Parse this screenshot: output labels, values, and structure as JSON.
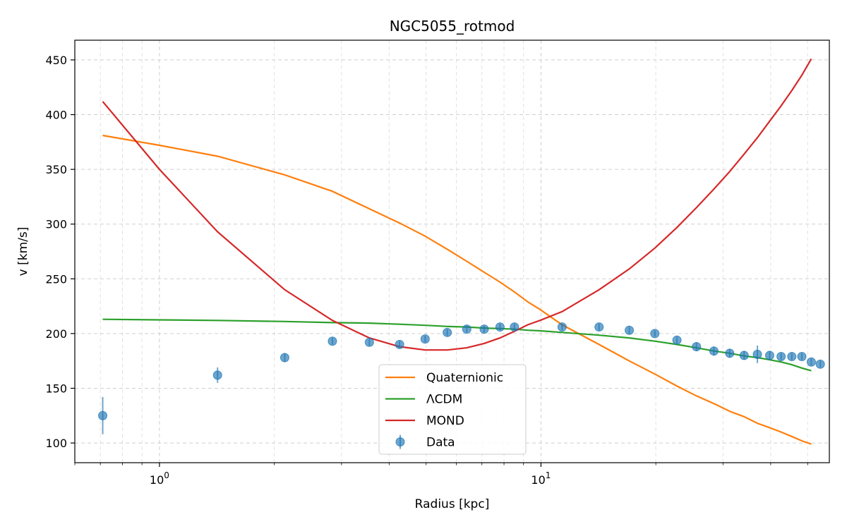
{
  "chart_data": {
    "type": "line",
    "title": "NGC5055_rotmod",
    "xlabel": "Radius [kpc]",
    "ylabel": "v [km/s]",
    "xscale": "log",
    "xlim": [
      0.6,
      57
    ],
    "ylim": [
      82,
      468
    ],
    "yticks": [
      100,
      150,
      200,
      250,
      300,
      350,
      400,
      450
    ],
    "xticks": [
      {
        "value": 1,
        "base": "10",
        "exp": "0"
      },
      {
        "value": 10,
        "base": "10",
        "exp": "1"
      }
    ],
    "grid": true,
    "legend_position": "lower-center",
    "series": [
      {
        "name": "Quaternionic",
        "kind": "line",
        "color": "#ff7f0e",
        "x": [
          0.71,
          1.0,
          1.42,
          2.13,
          2.84,
          3.55,
          4.26,
          4.97,
          5.68,
          6.39,
          7.1,
          7.81,
          8.52,
          9.23,
          9.94,
          11.36,
          14.2,
          17.04,
          19.88,
          22.72,
          25.56,
          28.4,
          31.24,
          34.08,
          36.92,
          39.76,
          42.6,
          45.44,
          48.28,
          51.12
        ],
        "y": [
          381,
          372,
          362,
          345,
          330,
          314,
          301,
          289,
          277,
          266,
          256,
          247,
          238,
          229,
          222,
          208,
          190,
          175,
          163,
          152,
          143,
          136,
          129,
          124,
          118,
          114,
          110,
          106,
          102,
          99
        ]
      },
      {
        "name": "ΛCDM",
        "kind": "line",
        "color": "#2ca02c",
        "x": [
          0.71,
          1.0,
          1.42,
          2.13,
          2.84,
          3.55,
          4.26,
          4.97,
          5.68,
          6.39,
          7.1,
          7.81,
          8.52,
          9.23,
          9.94,
          11.36,
          14.2,
          17.04,
          19.88,
          22.72,
          25.56,
          28.4,
          31.24,
          34.08,
          36.92,
          39.76,
          42.6,
          45.44,
          48.28,
          51.12
        ],
        "y": [
          213,
          212.5,
          212,
          211,
          210,
          209.5,
          208.5,
          207.5,
          206.5,
          206,
          205,
          204.5,
          204,
          203,
          202.5,
          201,
          198.5,
          196,
          193,
          190,
          187,
          184,
          182,
          179.5,
          178,
          176,
          174,
          171.5,
          168.5,
          166
        ]
      },
      {
        "name": "MOND",
        "kind": "line",
        "color": "#d62728",
        "x": [
          0.71,
          1.0,
          1.42,
          2.13,
          2.84,
          3.55,
          4.26,
          4.97,
          5.68,
          6.39,
          7.1,
          7.81,
          8.52,
          9.23,
          9.94,
          11.36,
          14.2,
          17.04,
          19.88,
          22.72,
          25.56,
          28.4,
          31.24,
          34.08,
          36.92,
          39.76,
          42.6,
          45.44,
          48.28,
          51.12
        ],
        "y": [
          412,
          350,
          293,
          240,
          212,
          196,
          188,
          185,
          185,
          187,
          191,
          196,
          202,
          208,
          212,
          220,
          240,
          259,
          278,
          297,
          315,
          332,
          348,
          364,
          379,
          394,
          408,
          422,
          436,
          451
        ]
      },
      {
        "name": "Data",
        "kind": "errorbar",
        "color": "#1f77b4",
        "x": [
          0.71,
          1.42,
          2.13,
          2.84,
          3.55,
          4.26,
          4.97,
          5.68,
          6.39,
          7.1,
          7.81,
          8.52,
          11.36,
          14.2,
          17.04,
          19.88,
          22.72,
          25.56,
          28.4,
          31.24,
          34.08,
          36.92,
          39.76,
          42.6,
          45.44,
          48.28,
          51.12,
          53.96
        ],
        "y": [
          125,
          162,
          178,
          193,
          192,
          190,
          195,
          201,
          204,
          204,
          206,
          206,
          206,
          206,
          203,
          200,
          194,
          188,
          184,
          182,
          180,
          181,
          180,
          179,
          179,
          179,
          174,
          172
        ],
        "err": [
          17,
          7,
          4,
          3,
          3,
          3,
          3,
          3,
          3,
          3,
          3,
          3,
          3,
          3,
          3,
          3,
          3,
          4,
          4,
          4,
          4,
          8,
          4,
          3,
          3,
          3,
          3,
          3
        ]
      }
    ]
  }
}
